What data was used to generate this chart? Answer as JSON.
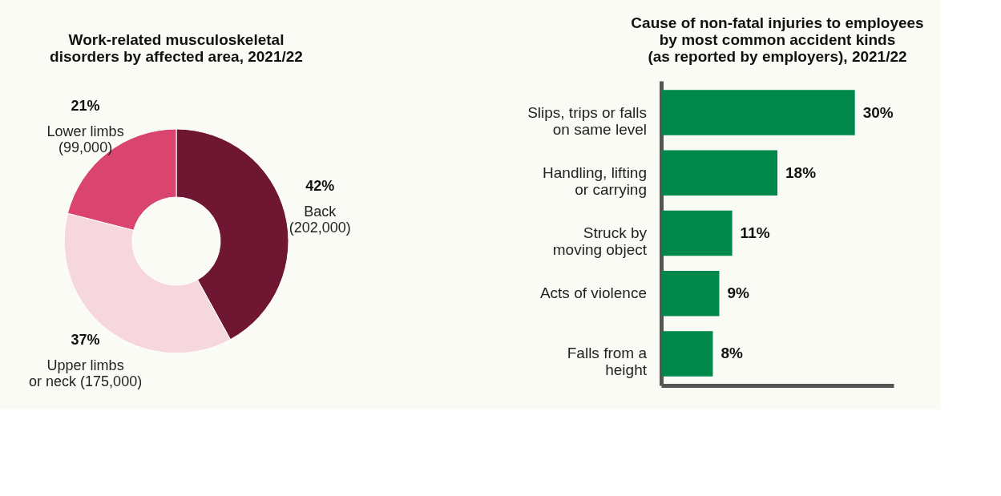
{
  "chart_data": [
    {
      "type": "donut",
      "title": "Work-related musculoskeletal\ndisorders by affected area, 2021/22",
      "categories": [
        "Back\n(202,000)",
        "Upper limbs\nor neck (175,000)",
        "Lower limbs\n(99,000)"
      ],
      "values": [
        42,
        37,
        21
      ],
      "colors": [
        "#6e1632",
        "#f6d7dd",
        "#d9456f"
      ],
      "value_labels": [
        "42%",
        "37%",
        "21%"
      ]
    },
    {
      "type": "bar",
      "orientation": "horizontal",
      "title": "Cause of non-fatal injuries to employees\nby most common accident kinds\n(as reported by employers), 2021/22",
      "categories": [
        "Slips, trips or falls\non same level",
        "Handling, lifting\nor carrying",
        "Struck by\nmoving object",
        "Acts of violence",
        "Falls from a\nheight"
      ],
      "values": [
        30,
        18,
        11,
        9,
        8
      ],
      "color": "#00884a",
      "value_labels": [
        "30%",
        "18%",
        "11%",
        "9%",
        "8%"
      ],
      "xlim": [
        0,
        36
      ],
      "tick_labels": false,
      "grid": false
    }
  ]
}
